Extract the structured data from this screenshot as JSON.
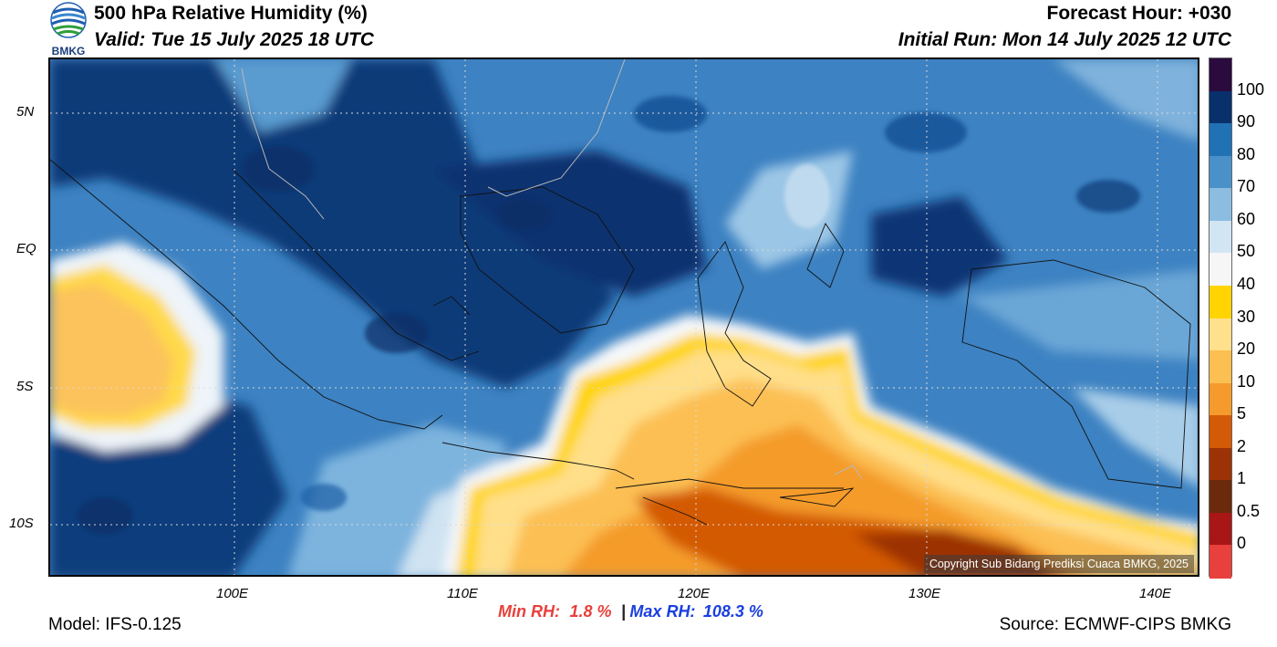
{
  "header": {
    "title": "500 hPa Relative Humidity (%)",
    "valid": "Valid: Tue 15 July 2025 18 UTC",
    "forecast_hour": "Forecast Hour: +030",
    "initial_run": "Initial Run: Mon 14 July 2025 12 UTC",
    "logo_text": "BMKG"
  },
  "map": {
    "lat_labels": [
      "5N",
      "EQ",
      "5S",
      "10S"
    ],
    "lon_labels": [
      "100E",
      "110E",
      "120E",
      "130E",
      "140E"
    ],
    "copyright": "Copyright Sub Bidang Prediksi Cuaca BMKG, 2025"
  },
  "colorbar": {
    "levels": [
      "100",
      "90",
      "80",
      "70",
      "60",
      "50",
      "40",
      "30",
      "20",
      "10",
      "5",
      "2",
      "1",
      "0.5",
      "0"
    ],
    "colors": [
      "#2b0a3d",
      "#08306b",
      "#2171b5",
      "#4a90c9",
      "#8cbce0",
      "#d2e5f3",
      "#f6f6f6",
      "#ffd400",
      "#ffe08c",
      "#fcbf52",
      "#f49b2c",
      "#d35a06",
      "#9c3306",
      "#6b2a0b",
      "#a81616",
      "#e8403c"
    ]
  },
  "footer": {
    "model": "Model: IFS-0.125",
    "min_label": "Min RH:",
    "min_value": "1.8 %",
    "separator": "|",
    "max_label": "Max RH:",
    "max_value": "108.3 %",
    "source": "Source: ECMWF-CIPS BMKG"
  }
}
